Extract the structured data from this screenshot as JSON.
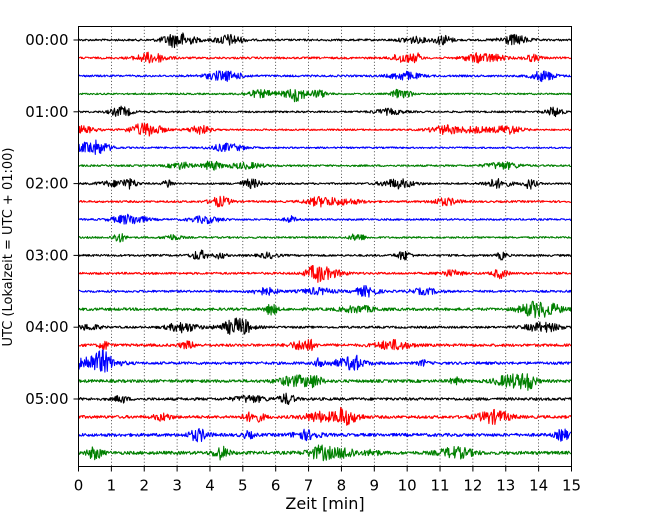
{
  "chart_data": {
    "type": "line",
    "title": "",
    "xlabel": "Zeit  [min]",
    "ylabel": "UTC (Lokalzeit = UTC + 01:00)",
    "xlim": [
      0,
      15
    ],
    "x_ticks": [
      0,
      1,
      2,
      3,
      4,
      5,
      6,
      7,
      8,
      9,
      10,
      11,
      12,
      13,
      14,
      15
    ],
    "y_tick_labels": [
      "00:00",
      "01:00",
      "02:00",
      "03:00",
      "04:00",
      "05:00"
    ],
    "row_minutes": 15,
    "grid": "vertical dotted lines at each minute",
    "legend": "none",
    "color_cycle": [
      "#000000",
      "#ff0000",
      "#0000ff",
      "#008000"
    ],
    "series": [
      {
        "start": "00:00",
        "amplitude": 0.55
      },
      {
        "start": "00:15",
        "amplitude": 0.55
      },
      {
        "start": "00:30",
        "amplitude": 0.55
      },
      {
        "start": "00:45",
        "amplitude": 0.45
      },
      {
        "start": "01:00",
        "amplitude": 0.5
      },
      {
        "start": "01:15",
        "amplitude": 0.45
      },
      {
        "start": "01:30",
        "amplitude": 0.45
      },
      {
        "start": "01:45",
        "amplitude": 0.5
      },
      {
        "start": "02:00",
        "amplitude": 0.5
      },
      {
        "start": "02:15",
        "amplitude": 0.55
      },
      {
        "start": "02:30",
        "amplitude": 0.5
      },
      {
        "start": "02:45",
        "amplitude": 0.5
      },
      {
        "start": "03:00",
        "amplitude": 0.55
      },
      {
        "start": "03:15",
        "amplitude": 0.6
      },
      {
        "start": "03:30",
        "amplitude": 0.6
      },
      {
        "start": "03:45",
        "amplitude": 0.75
      },
      {
        "start": "04:00",
        "amplitude": 0.6
      },
      {
        "start": "04:15",
        "amplitude": 0.75
      },
      {
        "start": "04:30",
        "amplitude": 0.75
      },
      {
        "start": "04:45",
        "amplitude": 0.8
      },
      {
        "start": "05:00",
        "amplitude": 0.75
      },
      {
        "start": "05:15",
        "amplitude": 0.8
      },
      {
        "start": "05:30",
        "amplitude": 0.85
      },
      {
        "start": "05:45",
        "amplitude": 0.9
      }
    ]
  }
}
